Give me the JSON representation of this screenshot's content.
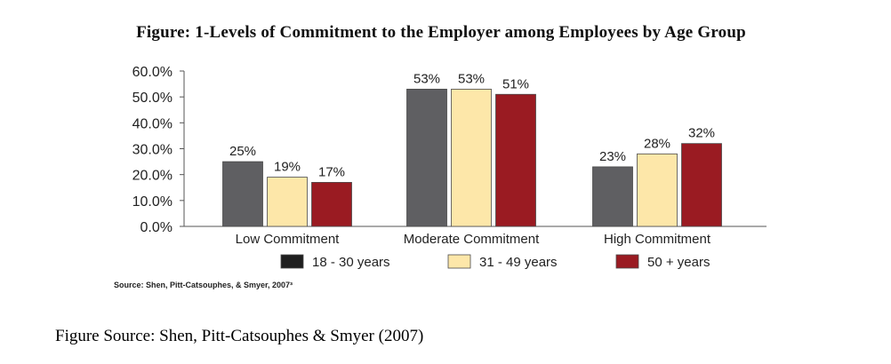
{
  "figure_title": "Figure: 1-Levels of Commitment to the Employer among Employees by Age Group",
  "chart_source_note": "Source:  Shen, Pitt-Catsouphes, & Smyer, 2007³",
  "figure_source": "Figure Source:  Shen, Pitt-Catsouphes & Smyer (2007)",
  "chart_data": {
    "type": "bar",
    "title": "",
    "xlabel": "",
    "ylabel": "",
    "ylim": [
      0,
      60
    ],
    "y_ticks": [
      "0.0%",
      "10.0%",
      "20.0%",
      "30.0%",
      "40.0%",
      "50.0%",
      "60.0%"
    ],
    "categories": [
      "Low Commitment",
      "Moderate Commitment",
      "High Commitment"
    ],
    "series": [
      {
        "name": "18 - 30 years",
        "color": "#5f5f62",
        "values": [
          25,
          53,
          23
        ],
        "labels": [
          "25%",
          "53%",
          "23%"
        ]
      },
      {
        "name": "31 - 49 years",
        "color": "#fde7a9",
        "values": [
          19,
          53,
          28
        ],
        "labels": [
          "19%",
          "53%",
          "28%"
        ]
      },
      {
        "name": "50 + years",
        "color": "#9a1b22",
        "values": [
          17,
          51,
          32
        ],
        "labels": [
          "17%",
          "51%",
          "32%"
        ]
      }
    ],
    "legend_swatch_colors": [
      "#1f1f1f",
      "#fde7a9",
      "#9a1b22"
    ],
    "legend": "bottom",
    "grid": false
  }
}
